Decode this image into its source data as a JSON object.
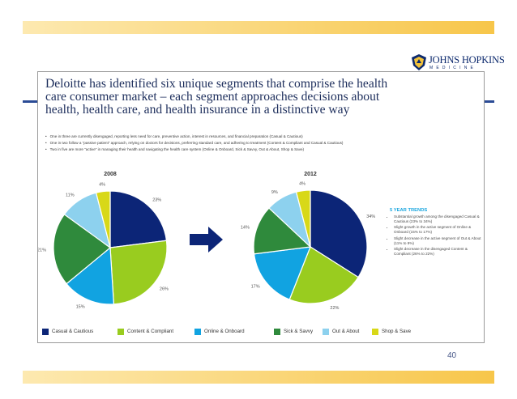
{
  "logo": {
    "text": "JOHNS HOPKINS",
    "sub": "MEDICINE",
    "shield_icon": "shield-icon"
  },
  "slide": {
    "title_lines": [
      "Deloitte has identified six unique segments that comprise the health",
      "care consumer market – each segment approaches decisions about",
      "health, health care, and health insurance in a distinctive way"
    ],
    "bullets": [
      "One in three are currently disengaged, reporting less need for care, preventive action, interest in resources, and financial preparation (Casual & Cautious)",
      "One in two follow a “passive patient” approach, relying on doctors for decisions, preferring standard care, and adhering to treatment (Content & Compliant and Casual & Cautious)",
      "Two in five are more “active” in managing their health and navigating the health care system (Online & Onboard, Sick & Savvy, Out & About, Shop & Save)"
    ],
    "trends": {
      "heading": "5 YEAR TRENDS",
      "items": [
        "Substantial growth among the disengaged Casual & Cautious (23% to 34%)",
        "Slight growth in the active segment of Online & Onboard (15% to 17%)",
        "Slight decrease in the active segment of Out & About (11% to 9%)",
        "Slight decrease in the disengaged Content & Compliant (26% to 22%)"
      ]
    },
    "arrow_icon": "right-arrow-icon",
    "page_number": "40"
  },
  "chart_data": [
    {
      "type": "pie",
      "title": "2008",
      "categories": [
        "Casual & Cautious",
        "Content & Compliant",
        "Online & Onboard",
        "Sick & Savvy",
        "Out & About",
        "Shop & Save"
      ],
      "values": [
        23,
        26,
        15,
        21,
        11,
        4
      ],
      "labels": [
        "23%",
        "26%",
        "15%",
        "21%",
        "11%",
        "4%"
      ],
      "colors": [
        "#0c2577",
        "#99cc1f",
        "#11a3e1",
        "#2f8a3c",
        "#8dd1ee",
        "#d8d818"
      ],
      "legend": "bottom"
    },
    {
      "type": "pie",
      "title": "2012",
      "categories": [
        "Casual & Cautious",
        "Content & Compliant",
        "Online & Onboard",
        "Sick & Savvy",
        "Out & About",
        "Shop & Save"
      ],
      "values": [
        34,
        22,
        17,
        14,
        9,
        4
      ],
      "labels": [
        "34%",
        "22%",
        "17%",
        "14%",
        "9%",
        "4%"
      ],
      "colors": [
        "#0c2577",
        "#99cc1f",
        "#11a3e1",
        "#2f8a3c",
        "#8dd1ee",
        "#d8d818"
      ],
      "legend": "bottom"
    }
  ]
}
